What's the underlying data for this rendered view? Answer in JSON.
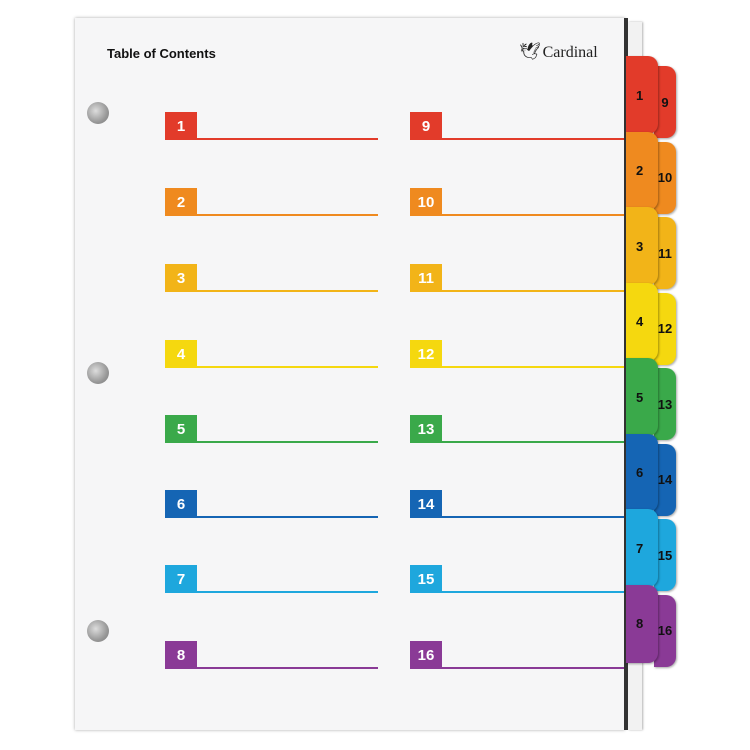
{
  "header": {
    "title": "Table of Contents",
    "brand": "Cardinal"
  },
  "entries": [
    {
      "number": "1",
      "color": "#e23b2a"
    },
    {
      "number": "2",
      "color": "#ef8a1f"
    },
    {
      "number": "3",
      "color": "#f2b418"
    },
    {
      "number": "4",
      "color": "#f5d80f"
    },
    {
      "number": "5",
      "color": "#3aa94a"
    },
    {
      "number": "6",
      "color": "#1565b4"
    },
    {
      "number": "7",
      "color": "#1ea7dd"
    },
    {
      "number": "8",
      "color": "#8a3a96"
    },
    {
      "number": "9",
      "color": "#e23b2a"
    },
    {
      "number": "10",
      "color": "#ef8a1f"
    },
    {
      "number": "11",
      "color": "#f2b418"
    },
    {
      "number": "12",
      "color": "#f5d80f"
    },
    {
      "number": "13",
      "color": "#3aa94a"
    },
    {
      "number": "14",
      "color": "#1565b4"
    },
    {
      "number": "15",
      "color": "#1ea7dd"
    },
    {
      "number": "16",
      "color": "#8a3a96"
    }
  ]
}
